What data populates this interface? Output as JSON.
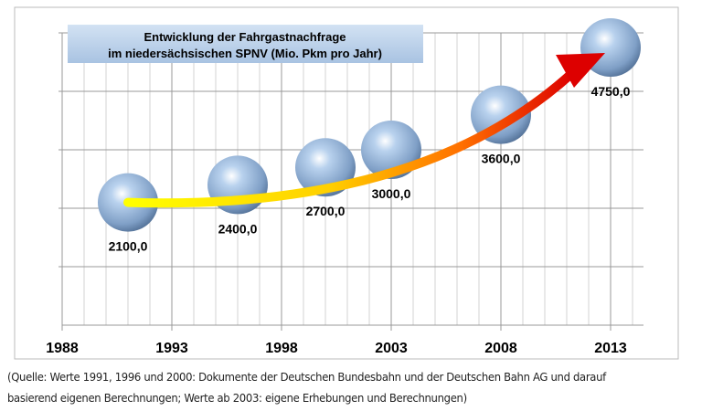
{
  "chart_data": {
    "type": "scatter",
    "title": "Entwicklung der Fahrgastnachfrage\nim niedersächsischen SPNV (Mio. Pkm pro Jahr)",
    "title_lines": [
      "Entwicklung der Fahrgastnachfrage",
      "im niedersächsischen SPNV (Mio. Pkm pro Jahr)"
    ],
    "xlabel": "",
    "ylabel": "",
    "x_ticks": [
      "1988",
      "1993",
      "1998",
      "2003",
      "2008",
      "2013"
    ],
    "xlim": [
      1988,
      2014.5
    ],
    "ylim": [
      0,
      5000
    ],
    "y_gridlines": [
      1000,
      2000,
      3000,
      4000,
      5000
    ],
    "grid": true,
    "x": [
      1991,
      1996,
      2000,
      2003,
      2008,
      2013
    ],
    "values": [
      2100,
      2400,
      2700,
      3000,
      3600,
      4750
    ],
    "data_labels": [
      "2100,0",
      "2400,0",
      "2700,0",
      "3000,0",
      "3600,0",
      "4750,0"
    ],
    "marker": "sphere",
    "trend_arrow": true,
    "colors": {
      "sphere": "#8fb0d8",
      "arrow_start": "#ffff00",
      "arrow_end": "#dd0000",
      "title_box": "#b8cfe8",
      "grid": "#c8c8c8"
    }
  },
  "footer": {
    "line1": "(Quelle: Werte 1991, 1996 und 2000: Dokumente der Deutschen Bundesbahn und der Deutschen Bahn AG und darauf",
    "line2": "basierend eigenen Berechnungen; Werte ab 2003: eigene Erhebungen und Berechnungen)"
  }
}
